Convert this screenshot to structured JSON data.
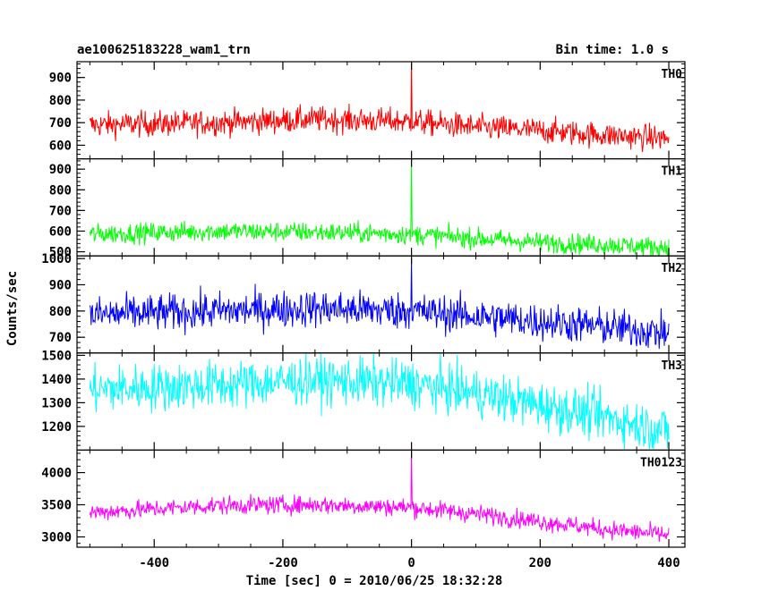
{
  "header": {
    "title": "ae100625183228_wam1_trn",
    "bin_time": "Bin time: 1.0 s"
  },
  "chart_data": {
    "type": "line",
    "title": "ae100625183228_wam1_trn",
    "subtitle": "Bin time: 1.0 s",
    "xlabel": "Time [sec] 0 = 2010/06/25 18:32:28",
    "ylabel": "Counts/sec",
    "xlim": [
      -520,
      425
    ],
    "x_ticks": [
      "-400",
      "-200",
      "0",
      "200",
      "400"
    ],
    "x_tick_values": [
      -400,
      -200,
      0,
      200,
      400
    ],
    "x_range": [
      -500,
      400
    ],
    "bin": 1,
    "grid": false,
    "series": [
      {
        "name": "TH0",
        "color": "#ff0000",
        "ylim": [
          540,
          970
        ],
        "y_ticks": [
          "600",
          "700",
          "800",
          "900"
        ],
        "y_tick_values": [
          600,
          700,
          800,
          900
        ],
        "trend": [
          [
            -500,
            690
          ],
          [
            -300,
            700
          ],
          [
            -150,
            715
          ],
          [
            0,
            705
          ],
          [
            100,
            680
          ],
          [
            200,
            665
          ],
          [
            300,
            645
          ],
          [
            400,
            630
          ]
        ],
        "noise": 28,
        "spike": {
          "x": 0,
          "y": 1000
        }
      },
      {
        "name": "TH1",
        "color": "#00ff00",
        "ylim": [
          480,
          950
        ],
        "y_ticks": [
          "500",
          "600",
          "700",
          "800",
          "900"
        ],
        "y_tick_values": [
          500,
          600,
          700,
          800,
          900
        ],
        "trend": [
          [
            -500,
            585
          ],
          [
            -300,
            600
          ],
          [
            -150,
            595
          ],
          [
            0,
            585
          ],
          [
            100,
            565
          ],
          [
            200,
            545
          ],
          [
            300,
            535
          ],
          [
            400,
            520
          ]
        ],
        "noise": 24,
        "spike": {
          "x": 0,
          "y": 950
        }
      },
      {
        "name": "TH2",
        "color": "#0000ff",
        "ylim": [
          640,
          1010
        ],
        "y_ticks": [
          "700",
          "800",
          "900",
          "1000"
        ],
        "y_tick_values": [
          700,
          800,
          900,
          1000
        ],
        "trend": [
          [
            -500,
            785
          ],
          [
            -300,
            800
          ],
          [
            -150,
            810
          ],
          [
            0,
            800
          ],
          [
            100,
            780
          ],
          [
            200,
            760
          ],
          [
            300,
            740
          ],
          [
            400,
            715
          ]
        ],
        "noise": 35,
        "spike": {
          "x": 0,
          "y": 1000
        }
      },
      {
        "name": "TH3",
        "color": "#00ffff",
        "ylim": [
          1100,
          1510
        ],
        "y_ticks": [
          "1200",
          "1300",
          "1400",
          "1500"
        ],
        "y_tick_values": [
          1200,
          1300,
          1400,
          1500
        ],
        "trend": [
          [
            -500,
            1355
          ],
          [
            -300,
            1375
          ],
          [
            -150,
            1395
          ],
          [
            0,
            1380
          ],
          [
            100,
            1340
          ],
          [
            200,
            1290
          ],
          [
            300,
            1240
          ],
          [
            400,
            1180
          ]
        ],
        "noise": 50,
        "spike": null
      },
      {
        "name": "TH0123",
        "color": "#ff00ff",
        "ylim": [
          2840,
          4350
        ],
        "y_ticks": [
          "3000",
          "3500",
          "4000"
        ],
        "y_tick_values": [
          3000,
          3500,
          4000
        ],
        "trend": [
          [
            -500,
            3380
          ],
          [
            -300,
            3490
          ],
          [
            -150,
            3500
          ],
          [
            0,
            3460
          ],
          [
            100,
            3360
          ],
          [
            200,
            3240
          ],
          [
            300,
            3120
          ],
          [
            400,
            3030
          ]
        ],
        "noise": 70,
        "spike": {
          "x": 0,
          "y": 4350
        }
      }
    ]
  }
}
